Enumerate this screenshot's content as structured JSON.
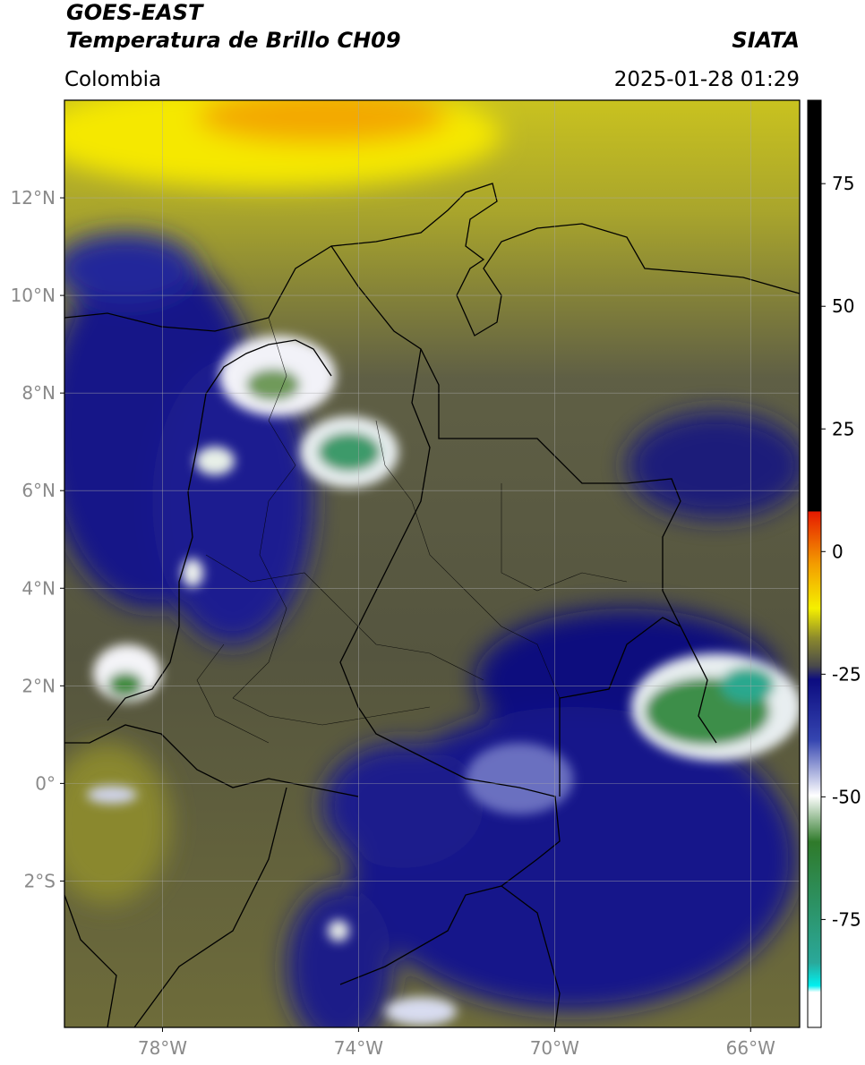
{
  "header": {
    "title": "GOES-EAST",
    "subtitle": "Temperatura de Brillo CH09",
    "source": "SIATA",
    "region": "Colombia",
    "datetime": "2025-01-28 01:29"
  },
  "map": {
    "lonlim": [
      -80,
      -65
    ],
    "latlim": [
      -5,
      14
    ],
    "lat_ticks": [
      {
        "value": 12,
        "label": "12°N"
      },
      {
        "value": 10,
        "label": "10°N"
      },
      {
        "value": 8,
        "label": "8°N"
      },
      {
        "value": 6,
        "label": "6°N"
      },
      {
        "value": 4,
        "label": "4°N"
      },
      {
        "value": 2,
        "label": "2°N"
      },
      {
        "value": 0,
        "label": "0°"
      },
      {
        "value": -2,
        "label": "2°S"
      }
    ],
    "lon_ticks": [
      {
        "value": -78,
        "label": "78°W"
      },
      {
        "value": -74,
        "label": "74°W"
      },
      {
        "value": -70,
        "label": "70°W"
      },
      {
        "value": -66,
        "label": "66°W"
      }
    ],
    "grid": true
  },
  "colorbar": {
    "clim": [
      -97,
      92
    ],
    "ticks": [
      75,
      50,
      25,
      0,
      -25,
      -50,
      -75
    ]
  }
}
